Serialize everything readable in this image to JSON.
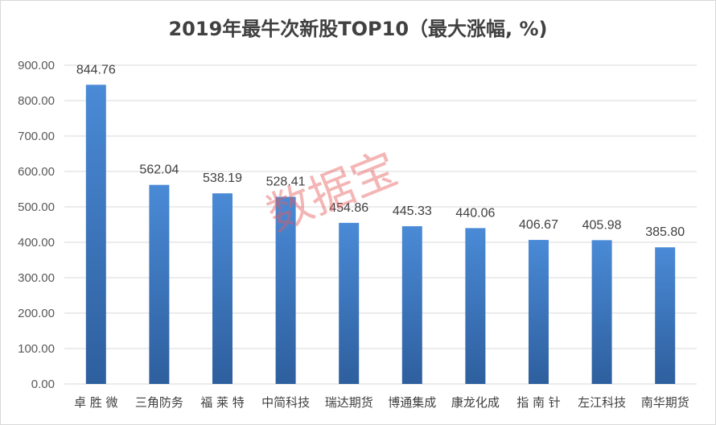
{
  "chart_data": {
    "type": "bar",
    "title": "2019年最牛次新股TOP10（最大涨幅, %)",
    "categories": [
      "卓 胜 微",
      "三角防务",
      "福 莱 特",
      "中简科技",
      "瑞达期货",
      "博通集成",
      "康龙化成",
      "指 南 针",
      "左江科技",
      "南华期货"
    ],
    "values": [
      844.76,
      562.04,
      538.19,
      528.41,
      454.86,
      445.33,
      440.06,
      406.67,
      405.98,
      385.8
    ],
    "data_labels": [
      "844.76",
      "562.04",
      "538.19",
      "528.41",
      "454.86",
      "445.33",
      "440.06",
      "406.67",
      "405.98",
      "385.80"
    ],
    "y_ticks": [
      "0.00",
      "100.00",
      "200.00",
      "300.00",
      "400.00",
      "500.00",
      "600.00",
      "700.00",
      "800.00",
      "900.00"
    ],
    "ylim": [
      0,
      900
    ],
    "grid": true,
    "legend": "none",
    "xlabel": "",
    "ylabel": "",
    "bar_color_top": "#4a8ad6",
    "bar_color_bottom": "#2e5f9e",
    "watermark": "数据宝"
  }
}
